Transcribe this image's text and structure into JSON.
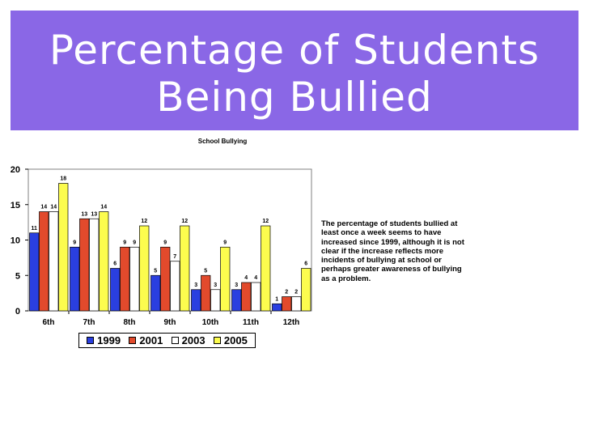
{
  "banner": {
    "title": "Percentage of Students\nBeing Bullied",
    "color": "#8a67e6"
  },
  "annotation": "The percentage of students bullied at least once a week seems to have increased since 1999, although it is not clear if the increase reflects more incidents of bullying at school or perhaps greater awareness of bullying as a problem.",
  "chart_data": {
    "type": "bar",
    "title": "School Bullying",
    "categories": [
      "6th",
      "7th",
      "8th",
      "9th",
      "10th",
      "11th",
      "12th"
    ],
    "series": [
      {
        "name": "1999",
        "color": "#2a3fe0",
        "values": [
          11,
          9,
          6,
          5,
          3,
          3,
          1
        ]
      },
      {
        "name": "2001",
        "color": "#e24a2c",
        "values": [
          14,
          13,
          9,
          9,
          5,
          4,
          2
        ]
      },
      {
        "name": "2003",
        "color": "#ffffff",
        "values": [
          14,
          13,
          9,
          7,
          3,
          4,
          2
        ]
      },
      {
        "name": "2005",
        "color": "#fcfc4e",
        "values": [
          18,
          14,
          12,
          12,
          9,
          12,
          6
        ]
      }
    ],
    "ylim": [
      0,
      20
    ],
    "yticks": [
      0,
      5,
      10,
      15,
      20
    ],
    "grid": false,
    "legend_position": "bottom"
  }
}
